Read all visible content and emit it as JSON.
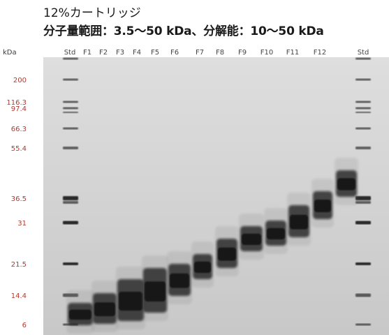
{
  "caption": {
    "line1": "12%カートリッジ",
    "line2": "分子量範囲：3.5〜50 kDa、分解能：10〜50 kDa"
  },
  "gel": {
    "unit_label": "kDa",
    "lanes": [
      "Std",
      "F1",
      "F2",
      "F3",
      "F4",
      "F5",
      "F6",
      "F7",
      "F8",
      "F9",
      "F10",
      "F11",
      "F12",
      "Std"
    ],
    "markers": [
      "200",
      "116.3",
      "97.4",
      "66.3",
      "55.4",
      "36.5",
      "31",
      "21.5",
      "14.4",
      "6"
    ],
    "marker_color": "#b03a2e",
    "background_color": "#d4d4d4",
    "band_color": "#101010"
  }
}
